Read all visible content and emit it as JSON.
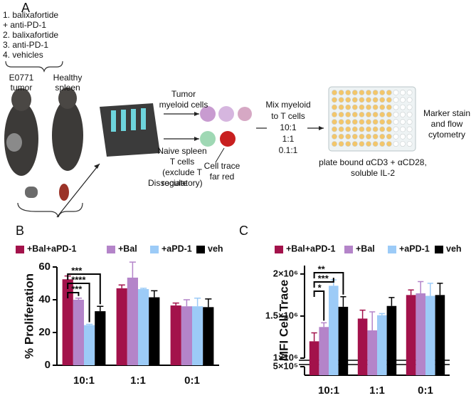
{
  "panel_a": {
    "label": "A",
    "treatments": [
      "1. balixafortide",
      "+ anti-PD-1",
      "2. balixafortide",
      "3. anti-PD-1",
      "4. vehicles"
    ],
    "tumor_label": [
      "E0771",
      "tumor"
    ],
    "spleen_label": [
      "Healthy",
      "spleen"
    ],
    "dissociate": "Dissociate",
    "myeloid": [
      "Tumor",
      "myeloid cells"
    ],
    "t_cells": [
      "Naive spleen",
      "T cells",
      "(exclude T",
      "regulatory)"
    ],
    "cell_trace": [
      "Cell trace",
      "far red"
    ],
    "mix": [
      "Mix myeloid",
      "to T cells",
      "10:1",
      "1:1",
      "0.1:1"
    ],
    "plate": [
      "plate bound αCD3 + αCD28,",
      "soluble IL-2"
    ],
    "readout": [
      "Marker stain",
      "and flow",
      "cytometry"
    ]
  },
  "chart_data": [
    {
      "type": "bar",
      "panel_label": "B",
      "y_label": "% Proliferation",
      "categories": [
        "10:1",
        "1:1",
        "0:1"
      ],
      "series": [
        {
          "name": "+Bal+aPD-1",
          "color": "#a3124b",
          "values": [
            52.5,
            47,
            36.5
          ],
          "errors": [
            2,
            2,
            1.5
          ]
        },
        {
          "name": "+Bal",
          "color": "#b484c9",
          "values": [
            40,
            53.5,
            36
          ],
          "errors": [
            1,
            9.5,
            4
          ]
        },
        {
          "name": "+aPD-1",
          "color": "#9ccbf7",
          "values": [
            24.5,
            46.5,
            36
          ],
          "errors": [
            0.5,
            0.5,
            5
          ]
        },
        {
          "name": "veh",
          "color": "#000000",
          "values": [
            33,
            41.5,
            35.5
          ],
          "errors": [
            3,
            4,
            5
          ]
        }
      ],
      "ylim": [
        0,
        60
      ],
      "yticks": [
        0,
        20,
        40,
        60
      ],
      "annotations": [
        "***",
        "****",
        "***"
      ]
    },
    {
      "type": "bar",
      "panel_label": "C",
      "y_label": "MFI  Cell Trace",
      "categories": [
        "10:1",
        "1:1",
        "0:1"
      ],
      "series": [
        {
          "name": "+Bal+aPD-1",
          "color": "#a3124b",
          "values": [
            1200000,
            1470000,
            1750000
          ],
          "errors": [
            100000,
            100000,
            60000
          ]
        },
        {
          "name": "+Bal",
          "color": "#b484c9",
          "values": [
            1370000,
            1330000,
            1770000
          ],
          "errors": [
            50000,
            220000,
            140000
          ]
        },
        {
          "name": "+aPD-1",
          "color": "#9ccbf7",
          "values": [
            1860000,
            1510000,
            1740000
          ],
          "errors": [
            70000,
            20000,
            150000
          ]
        },
        {
          "name": "veh",
          "color": "#000000",
          "values": [
            1610000,
            1620000,
            1750000
          ],
          "errors": [
            120000,
            100000,
            140000
          ]
        }
      ],
      "ylim": [
        1000000,
        2100000
      ],
      "ylim_lower": [
        0,
        500000
      ],
      "yticks": [
        {
          "value": 2000000,
          "label": "2×10⁶"
        },
        {
          "value": 1500000,
          "label": "1.5×10⁶"
        },
        {
          "value": 1000000,
          "label": "1×10⁶"
        },
        {
          "value": 500000,
          "label": "5×10⁵"
        }
      ],
      "annotations": [
        "**",
        "***",
        "*"
      ]
    }
  ]
}
